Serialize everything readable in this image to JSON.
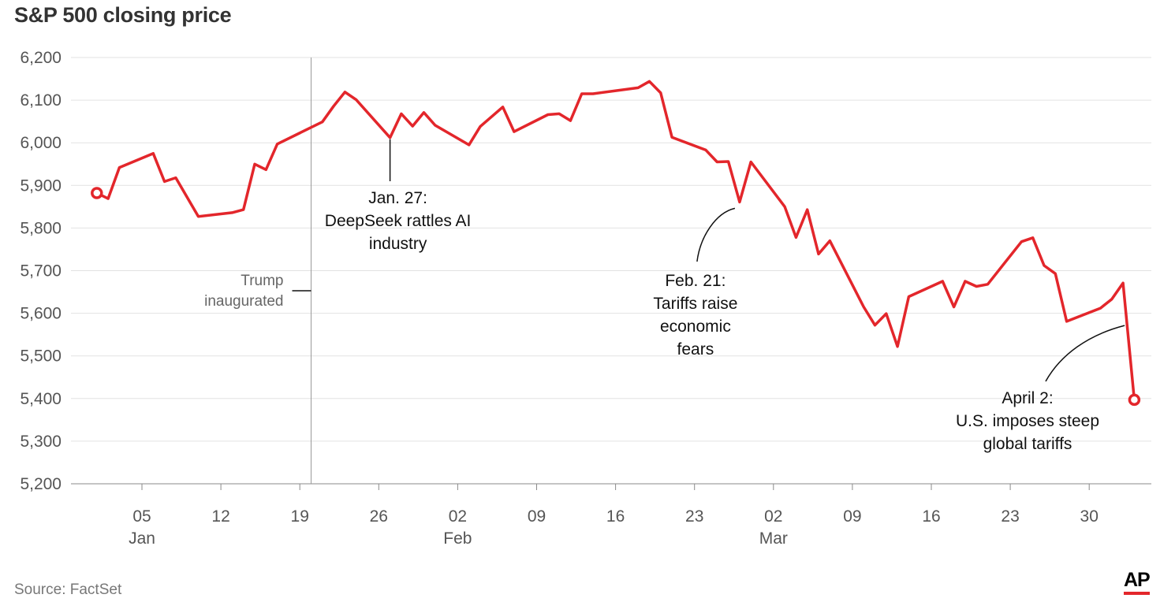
{
  "title": "S&P 500 closing price",
  "source": "Source: FactSet",
  "logo": "AP",
  "colors": {
    "line": "#e3262b",
    "grid": "#e2e2e2",
    "axis": "#999999",
    "text": "#555555"
  },
  "chart_data": {
    "type": "line",
    "title": "S&P 500 closing price",
    "ylim": [
      5200,
      6200
    ],
    "y_ticks": [
      "6,200",
      "6,100",
      "6,000",
      "5,900",
      "5,800",
      "5,700",
      "5,600",
      "5,500",
      "5,400",
      "5,300",
      "5,200"
    ],
    "y_tick_values": [
      6200,
      6100,
      6000,
      5900,
      5800,
      5700,
      5600,
      5500,
      5400,
      5300,
      5200
    ],
    "xlim": [
      "2024-12-31",
      "2025-04-04"
    ],
    "x_ticks": [
      {
        "date": "2025-01-05",
        "day": "05",
        "month": "Jan"
      },
      {
        "date": "2025-01-12",
        "day": "12",
        "month": ""
      },
      {
        "date": "2025-01-19",
        "day": "19",
        "month": ""
      },
      {
        "date": "2025-01-26",
        "day": "26",
        "month": ""
      },
      {
        "date": "2025-02-02",
        "day": "02",
        "month": "Feb"
      },
      {
        "date": "2025-02-09",
        "day": "09",
        "month": ""
      },
      {
        "date": "2025-02-16",
        "day": "16",
        "month": ""
      },
      {
        "date": "2025-02-23",
        "day": "23",
        "month": ""
      },
      {
        "date": "2025-03-02",
        "day": "02",
        "month": "Mar"
      },
      {
        "date": "2025-03-09",
        "day": "09",
        "month": ""
      },
      {
        "date": "2025-03-16",
        "day": "16",
        "month": ""
      },
      {
        "date": "2025-03-23",
        "day": "23",
        "month": ""
      },
      {
        "date": "2025-03-30",
        "day": "30",
        "month": ""
      }
    ],
    "grid": true,
    "series": [
      {
        "points": [
          [
            "2025-01-02",
            5869
          ],
          [
            "2025-01-03",
            5942
          ],
          [
            "2025-01-06",
            5975
          ],
          [
            "2025-01-07",
            5909
          ],
          [
            "2025-01-08",
            5918
          ],
          [
            "2025-01-10",
            5827
          ],
          [
            "2025-01-13",
            5836
          ],
          [
            "2025-01-14",
            5843
          ],
          [
            "2025-01-15",
            5950
          ],
          [
            "2025-01-16",
            5937
          ],
          [
            "2025-01-17",
            5997
          ],
          [
            "2025-01-21",
            6049
          ],
          [
            "2025-01-22",
            6086
          ],
          [
            "2025-01-23",
            6119
          ],
          [
            "2025-01-24",
            6101
          ],
          [
            "2025-01-27",
            6012
          ],
          [
            "2025-01-28",
            6068
          ],
          [
            "2025-01-29",
            6039
          ],
          [
            "2025-01-30",
            6071
          ],
          [
            "2025-01-31",
            6041
          ],
          [
            "2025-02-03",
            5995
          ],
          [
            "2025-02-04",
            6038
          ],
          [
            "2025-02-05",
            6061
          ],
          [
            "2025-02-06",
            6084
          ],
          [
            "2025-02-07",
            6026
          ],
          [
            "2025-02-10",
            6066
          ],
          [
            "2025-02-11",
            6068
          ],
          [
            "2025-02-12",
            6052
          ],
          [
            "2025-02-13",
            6115
          ],
          [
            "2025-02-14",
            6115
          ],
          [
            "2025-02-18",
            6129
          ],
          [
            "2025-02-19",
            6144
          ],
          [
            "2025-02-20",
            6117
          ],
          [
            "2025-02-21",
            6013
          ],
          [
            "2025-02-24",
            5983
          ],
          [
            "2025-02-25",
            5955
          ],
          [
            "2025-02-26",
            5956
          ],
          [
            "2025-02-27",
            5861
          ],
          [
            "2025-02-28",
            5955
          ],
          [
            "2025-03-03",
            5850
          ],
          [
            "2025-03-04",
            5778
          ],
          [
            "2025-03-05",
            5843
          ],
          [
            "2025-03-06",
            5739
          ],
          [
            "2025-03-07",
            5770
          ],
          [
            "2025-03-10",
            5615
          ],
          [
            "2025-03-11",
            5572
          ],
          [
            "2025-03-12",
            5599
          ],
          [
            "2025-03-13",
            5522
          ],
          [
            "2025-03-14",
            5639
          ],
          [
            "2025-03-17",
            5675
          ],
          [
            "2025-03-18",
            5615
          ],
          [
            "2025-03-19",
            5675
          ],
          [
            "2025-03-20",
            5663
          ],
          [
            "2025-03-21",
            5668
          ],
          [
            "2025-03-24",
            5768
          ],
          [
            "2025-03-25",
            5777
          ],
          [
            "2025-03-26",
            5712
          ],
          [
            "2025-03-27",
            5693
          ],
          [
            "2025-03-28",
            5581
          ],
          [
            "2025-03-31",
            5612
          ],
          [
            "2025-04-01",
            5633
          ],
          [
            "2025-04-02",
            5671
          ],
          [
            "2025-04-03",
            5397
          ]
        ]
      }
    ],
    "endpoints": [
      [
        "2025-01-01",
        5882
      ],
      [
        "2025-04-03",
        5397
      ]
    ],
    "reference_lines": [
      {
        "date": "2025-01-20",
        "label_lines": [
          "Trump",
          "inaugurated"
        ]
      }
    ],
    "annotations": [
      {
        "date": "2025-01-27",
        "value": 6012,
        "lines": [
          "Jan. 27:",
          "DeepSeek rattles AI",
          "industry"
        ]
      },
      {
        "date": "2025-02-27",
        "value": 5861,
        "lines": [
          "Feb. 21:",
          "Tariffs raise",
          "economic",
          "fears"
        ]
      },
      {
        "date": "2025-04-02",
        "value": 5575,
        "lines": [
          "April 2:",
          "U.S. imposes steep",
          "global tariffs"
        ]
      }
    ]
  }
}
